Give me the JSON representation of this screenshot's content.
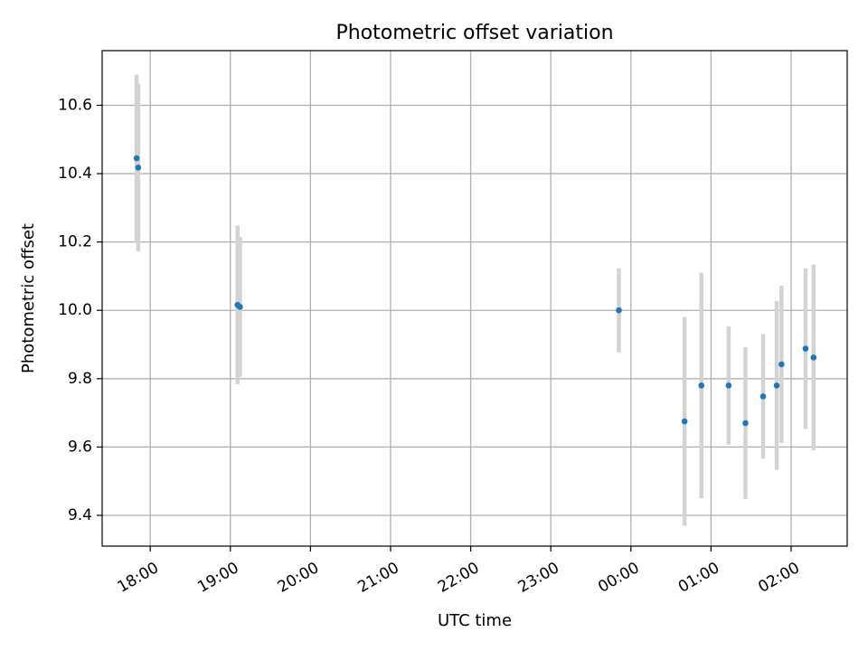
{
  "chart_data": {
    "type": "scatter",
    "title": "Photometric offset variation",
    "xlabel": "UTC time",
    "ylabel": "Photometric offset",
    "x_unit": "hours",
    "x_ticks": [
      {
        "value": 18,
        "label": "18:00"
      },
      {
        "value": 19,
        "label": "19:00"
      },
      {
        "value": 20,
        "label": "20:00"
      },
      {
        "value": 21,
        "label": "21:00"
      },
      {
        "value": 22,
        "label": "22:00"
      },
      {
        "value": 23,
        "label": "23:00"
      },
      {
        "value": 24,
        "label": "00:00"
      },
      {
        "value": 25,
        "label": "01:00"
      },
      {
        "value": 26,
        "label": "02:00"
      }
    ],
    "y_ticks": [
      {
        "value": 9.4,
        "label": "9.4"
      },
      {
        "value": 9.6,
        "label": "9.6"
      },
      {
        "value": 9.8,
        "label": "9.8"
      },
      {
        "value": 10.0,
        "label": "10.0"
      },
      {
        "value": 10.2,
        "label": "10.2"
      },
      {
        "value": 10.4,
        "label": "10.4"
      },
      {
        "value": 10.6,
        "label": "10.6"
      }
    ],
    "xlim": [
      17.4,
      26.7
    ],
    "ylim": [
      9.31,
      10.76
    ],
    "grid": true,
    "marker_color": "#1f77b4",
    "errorbar_color": "#d3d3d3",
    "points": [
      {
        "x": 17.83,
        "y": 10.445,
        "err": 0.245
      },
      {
        "x": 17.85,
        "y": 10.418,
        "err": 0.245
      },
      {
        "x": 19.09,
        "y": 10.016,
        "err": 0.232
      },
      {
        "x": 19.12,
        "y": 10.01,
        "err": 0.205
      },
      {
        "x": 23.85,
        "y": 10.0,
        "err": 0.123
      },
      {
        "x": 24.67,
        "y": 9.675,
        "err": 0.305
      },
      {
        "x": 24.88,
        "y": 9.78,
        "err": 0.33
      },
      {
        "x": 25.22,
        "y": 9.78,
        "err": 0.173
      },
      {
        "x": 25.43,
        "y": 9.67,
        "err": 0.222
      },
      {
        "x": 25.65,
        "y": 9.748,
        "err": 0.182
      },
      {
        "x": 25.82,
        "y": 9.78,
        "err": 0.247
      },
      {
        "x": 25.88,
        "y": 9.842,
        "err": 0.23
      },
      {
        "x": 26.18,
        "y": 9.888,
        "err": 0.235
      },
      {
        "x": 26.28,
        "y": 9.862,
        "err": 0.272
      }
    ]
  }
}
